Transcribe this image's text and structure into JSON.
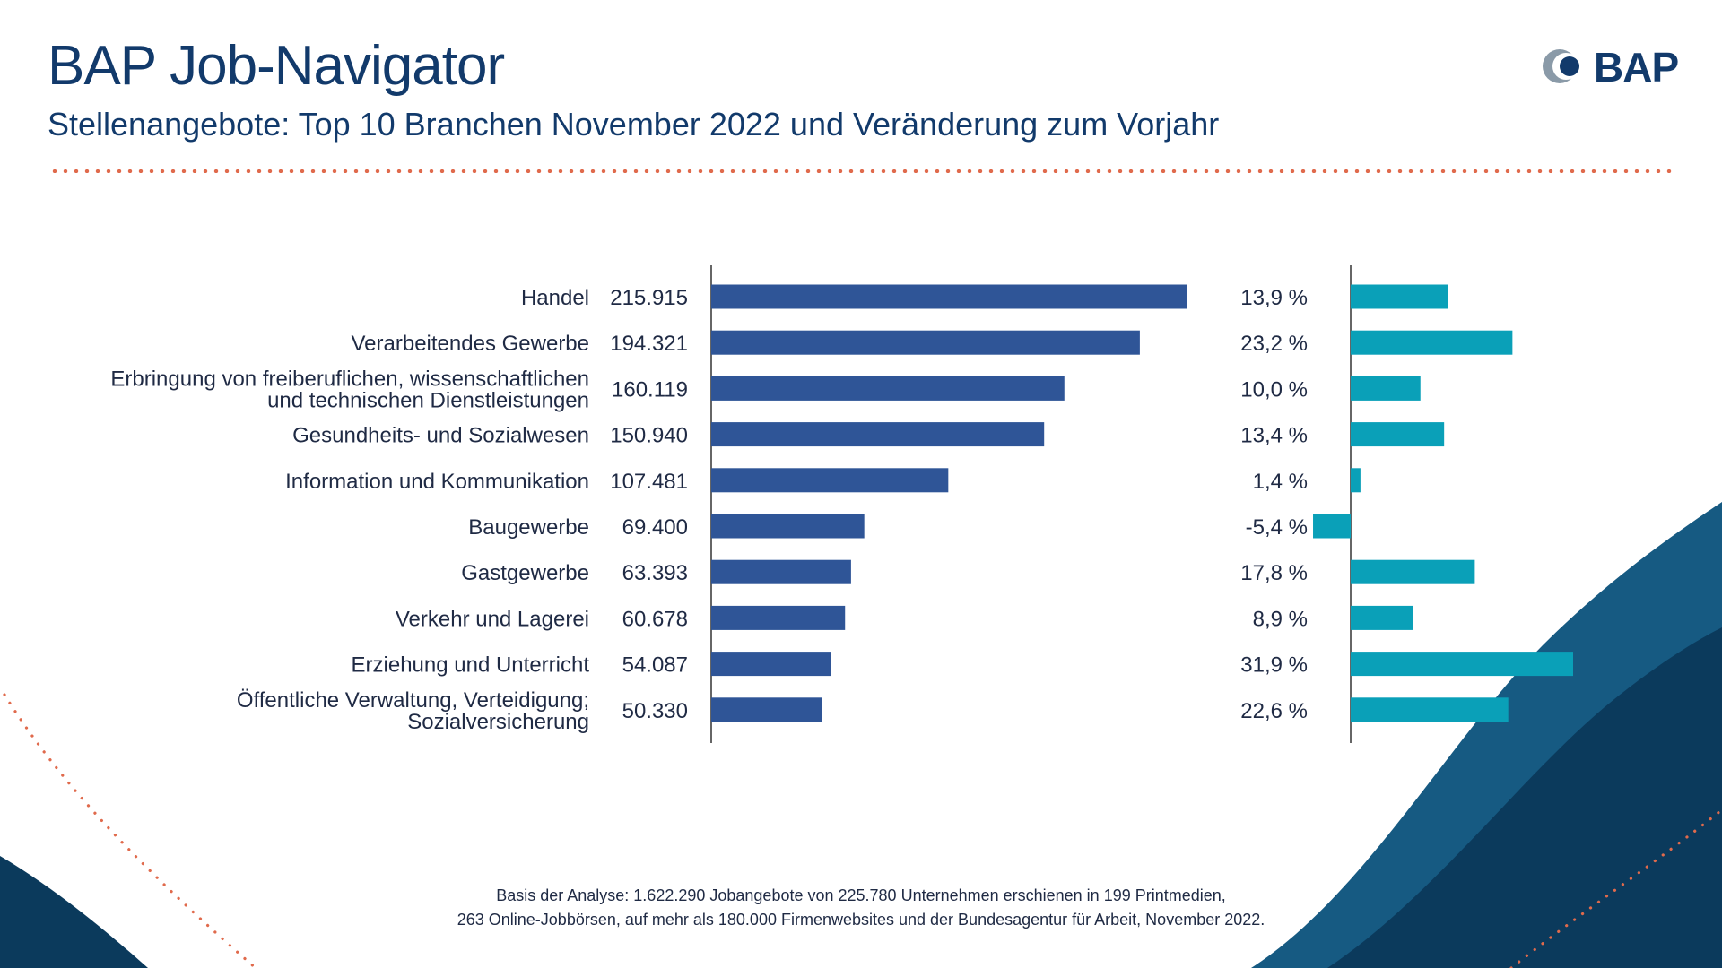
{
  "header": {
    "title": "BAP Job-Navigator",
    "subtitle": "Stellenangebote: Top 10 Branchen November 2022 und Veränderung zum Vorjahr",
    "logo_text": "BAP"
  },
  "colors": {
    "title": "#123a6b",
    "bar_primary": "#2f5597",
    "bar_change": "#0aa0b8",
    "accent_dots": "#e06a4c",
    "wave_dark": "#0b3a5c"
  },
  "chart_data": [
    {
      "type": "bar",
      "orientation": "horizontal",
      "categories": [
        [
          "Handel"
        ],
        [
          "Verarbeitendes Gewerbe"
        ],
        [
          "Erbringung von freiberuflichen, wissenschaftlichen",
          "und technischen Dienstleistungen"
        ],
        [
          "Gesundheits- und Sozialwesen"
        ],
        [
          "Information und Kommunikation"
        ],
        [
          "Baugewerbe"
        ],
        [
          "Gastgewerbe"
        ],
        [
          "Verkehr und Lagerei"
        ],
        [
          "Erziehung und Unterricht"
        ],
        [
          "Öffentliche Verwaltung, Verteidigung;",
          "Sozialversicherung"
        ]
      ],
      "values": [
        215915,
        194321,
        160119,
        150940,
        107481,
        69400,
        63393,
        60678,
        54087,
        50330
      ],
      "value_labels": [
        "215.915",
        "194.321",
        "160.119",
        "150.940",
        "107.481",
        "69.400",
        "63.393",
        "60.678",
        "54.087",
        "50.330"
      ],
      "xlim": [
        0,
        215915
      ]
    },
    {
      "type": "bar",
      "orientation": "horizontal",
      "values": [
        13.9,
        23.2,
        10.0,
        13.4,
        1.4,
        -5.4,
        17.8,
        8.9,
        31.9,
        22.6
      ],
      "value_labels": [
        "13,9 %",
        "23,2 %",
        "10,0 %",
        "13,4 %",
        "1,4 %",
        "-5,4 %",
        "17,8 %",
        "8,9 %",
        "31,9 %",
        "22,6 %"
      ],
      "xlim": [
        -5.4,
        31.9
      ]
    }
  ],
  "footnote": {
    "line1": "Basis der Analyse: 1.622.290 Jobangebote von 225.780 Unternehmen erschienen in 199 Printmedien,",
    "line2": "263 Online-Jobbörsen, auf mehr als 180.000 Firmenwebsites und der Bundesagentur für Arbeit, November 2022."
  }
}
